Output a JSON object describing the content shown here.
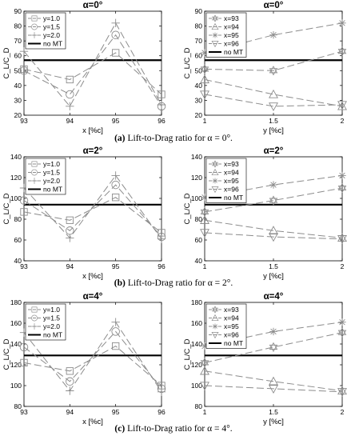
{
  "colors": {
    "series": [
      "#8c8c8c",
      "#8c8c8c",
      "#8c8c8c",
      "#8c8c8c"
    ],
    "reference": "#000000"
  },
  "captions": [
    {
      "letter": "(a)",
      "text": "Lift-to-Drag ratio for α = 0°."
    },
    {
      "letter": "(b)",
      "text": "Lift-to-Drag ratio for α = 2°."
    },
    {
      "letter": "(c)",
      "text": "Lift-to-Drag ratio for α = 4°."
    }
  ],
  "chart_data": [
    {
      "type": "line",
      "title": "α=0°",
      "xlabel": "x [%c]",
      "ylabel": "C_L/C_D",
      "x": [
        93,
        94,
        95,
        96
      ],
      "xlim": [
        93,
        96
      ],
      "ylim": [
        20,
        90
      ],
      "xticks": [
        "93",
        "94",
        "95",
        "96"
      ],
      "yticks": [
        "20",
        "30",
        "40",
        "50",
        "60",
        "70",
        "80",
        "90"
      ],
      "legend_position": "top-left",
      "grid": false,
      "series": [
        {
          "name": "y=1.0",
          "marker": "square",
          "values": [
            51,
            44,
            62,
            34
          ]
        },
        {
          "name": "y=1.5",
          "marker": "circle",
          "values": [
            50,
            34,
            74,
            26
          ]
        },
        {
          "name": "y=2.0",
          "marker": "plus",
          "values": [
            63,
            26,
            82,
            27
          ]
        }
      ],
      "reference": {
        "name": "no MT",
        "value": 57
      }
    },
    {
      "type": "line",
      "title": "α=0°",
      "xlabel": "y [%c]",
      "ylabel": "C_L/C_D",
      "x": [
        1,
        1.5,
        2
      ],
      "xlim": [
        1,
        2
      ],
      "ylim": [
        20,
        90
      ],
      "xticks": [
        "1",
        "1.5",
        "2"
      ],
      "yticks": [
        "20",
        "30",
        "40",
        "50",
        "60",
        "70",
        "80",
        "90"
      ],
      "legend_position": "top-left",
      "grid": false,
      "series": [
        {
          "name": "x=93",
          "marker": "star",
          "values": [
            51,
            50,
            63
          ]
        },
        {
          "name": "x=94",
          "marker": "triangle-up",
          "values": [
            44,
            34,
            26
          ]
        },
        {
          "name": "x=95",
          "marker": "asterisk",
          "values": [
            62,
            74,
            82
          ]
        },
        {
          "name": "x=96",
          "marker": "triangle-down",
          "values": [
            34,
            26,
            27
          ]
        }
      ],
      "reference": {
        "name": "no MT",
        "value": 57
      }
    },
    {
      "type": "line",
      "title": "α=2°",
      "xlabel": "x [%c]",
      "ylabel": "C_L/C_D",
      "x": [
        93,
        94,
        95,
        96
      ],
      "xlim": [
        93,
        96
      ],
      "ylim": [
        40,
        140
      ],
      "xticks": [
        "93",
        "94",
        "95",
        "96"
      ],
      "yticks": [
        "40",
        "60",
        "80",
        "100",
        "120",
        "140"
      ],
      "legend_position": "top-left",
      "grid": false,
      "series": [
        {
          "name": "y=1.0",
          "marker": "square",
          "values": [
            87,
            79,
            101,
            67
          ]
        },
        {
          "name": "y=1.5",
          "marker": "circle",
          "values": [
            98,
            69,
            113,
            63
          ]
        },
        {
          "name": "y=2.0",
          "marker": "plus",
          "values": [
            110,
            62,
            122,
            61
          ]
        }
      ],
      "reference": {
        "name": "no MT",
        "value": 94
      }
    },
    {
      "type": "line",
      "title": "α=2°",
      "xlabel": "y [%c]",
      "ylabel": "C_L/C_D",
      "x": [
        1,
        1.5,
        2
      ],
      "xlim": [
        1,
        2
      ],
      "ylim": [
        40,
        140
      ],
      "xticks": [
        "1",
        "1.5",
        "2"
      ],
      "yticks": [
        "40",
        "60",
        "80",
        "100",
        "120",
        "140"
      ],
      "legend_position": "top-left",
      "grid": false,
      "series": [
        {
          "name": "x=93",
          "marker": "star",
          "values": [
            87,
            98,
            110
          ]
        },
        {
          "name": "x=94",
          "marker": "triangle-up",
          "values": [
            79,
            69,
            62
          ]
        },
        {
          "name": "x=95",
          "marker": "asterisk",
          "values": [
            101,
            113,
            122
          ]
        },
        {
          "name": "x=96",
          "marker": "triangle-down",
          "values": [
            67,
            63,
            61
          ]
        }
      ],
      "reference": {
        "name": "no MT",
        "value": 94
      }
    },
    {
      "type": "line",
      "title": "α=4°",
      "xlabel": "x [%c]",
      "ylabel": "C_L/C_D",
      "x": [
        93,
        94,
        95,
        96
      ],
      "xlim": [
        93,
        96
      ],
      "ylim": [
        80,
        180
      ],
      "xticks": [
        "93",
        "94",
        "95",
        "96"
      ],
      "yticks": [
        "80",
        "100",
        "120",
        "140",
        "160",
        "180"
      ],
      "legend_position": "top-left",
      "grid": false,
      "series": [
        {
          "name": "y=1.0",
          "marker": "square",
          "values": [
            122,
            114,
            138,
            100
          ]
        },
        {
          "name": "y=1.5",
          "marker": "circle",
          "values": [
            137,
            104,
            152,
            97
          ]
        },
        {
          "name": "y=2.0",
          "marker": "plus",
          "values": [
            151,
            95,
            161,
            94
          ]
        }
      ],
      "reference": {
        "name": "no MT",
        "value": 129
      }
    },
    {
      "type": "line",
      "title": "α=4°",
      "xlabel": "y [%c]",
      "ylabel": "C_L/C_D",
      "x": [
        1,
        1.5,
        2
      ],
      "xlim": [
        1,
        2
      ],
      "ylim": [
        80,
        180
      ],
      "xticks": [
        "1",
        "1.5",
        "2"
      ],
      "yticks": [
        "80",
        "100",
        "120",
        "140",
        "160",
        "180"
      ],
      "legend_position": "top-left",
      "grid": false,
      "series": [
        {
          "name": "x=93",
          "marker": "star",
          "values": [
            122,
            137,
            151
          ]
        },
        {
          "name": "x=94",
          "marker": "triangle-up",
          "values": [
            114,
            104,
            95
          ]
        },
        {
          "name": "x=95",
          "marker": "asterisk",
          "values": [
            138,
            152,
            161
          ]
        },
        {
          "name": "x=96",
          "marker": "triangle-down",
          "values": [
            100,
            97,
            94
          ]
        }
      ],
      "reference": {
        "name": "no MT",
        "value": 129
      }
    }
  ]
}
